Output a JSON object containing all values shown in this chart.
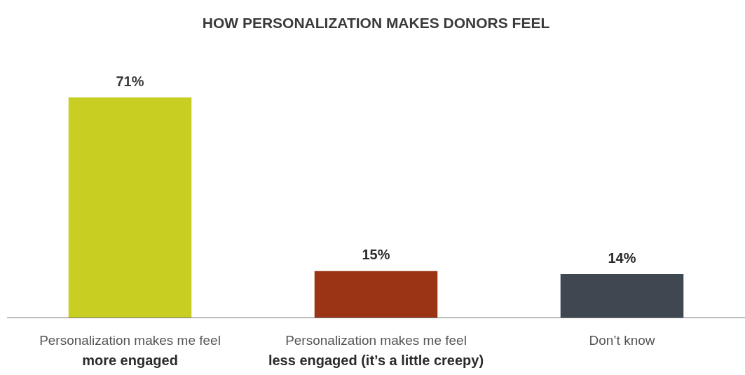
{
  "chart_data": {
    "type": "bar",
    "title": "HOW PERSONALIZATION MAKES DONORS FEEL",
    "categories": [
      "Personalization makes me feel\nmore engaged",
      "Personalization makes me feel\nless engaged (it’s a little creepy)",
      "Don’t know"
    ],
    "values": [
      71,
      15,
      14
    ],
    "value_labels": [
      "71%",
      "15%",
      "14%"
    ],
    "colors": [
      "#c8cf22",
      "#9a3415",
      "#3f4850"
    ],
    "grid": false,
    "legend": false
  }
}
